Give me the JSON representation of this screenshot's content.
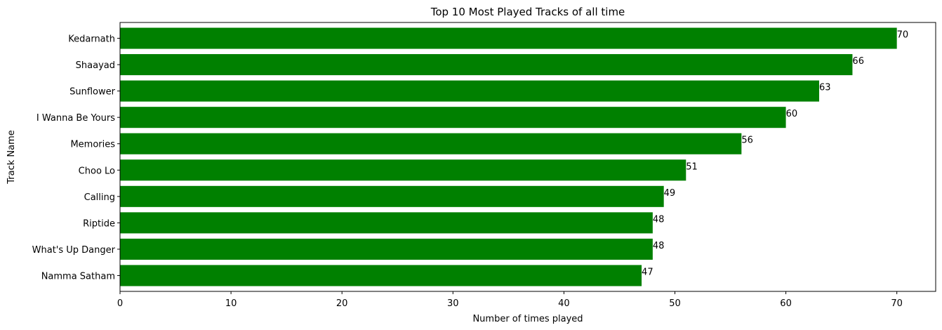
{
  "chart_data": {
    "type": "bar",
    "orientation": "horizontal",
    "title": "Top 10 Most Played Tracks of all time",
    "xlabel": "Number of times played",
    "ylabel": "Track Name",
    "categories": [
      "Kedarnath",
      "Shaayad",
      "Sunflower",
      "I Wanna Be Yours",
      "Memories",
      "Choo Lo",
      "Calling",
      "Riptide",
      "What's Up Danger",
      "Namma Satham"
    ],
    "values": [
      70,
      66,
      63,
      60,
      56,
      51,
      49,
      48,
      48,
      47
    ],
    "xlim": [
      0,
      73.5
    ],
    "xticks": [
      0,
      10,
      20,
      30,
      40,
      50,
      60,
      70
    ],
    "xtick_labels": [
      "0",
      "10",
      "20",
      "30",
      "40",
      "50",
      "60",
      "70"
    ],
    "data_labels": [
      "70",
      "66",
      "63",
      "60",
      "56",
      "51",
      "49",
      "48",
      "48",
      "47"
    ],
    "bar_color": "#008000",
    "grid": false,
    "legend": "none"
  }
}
